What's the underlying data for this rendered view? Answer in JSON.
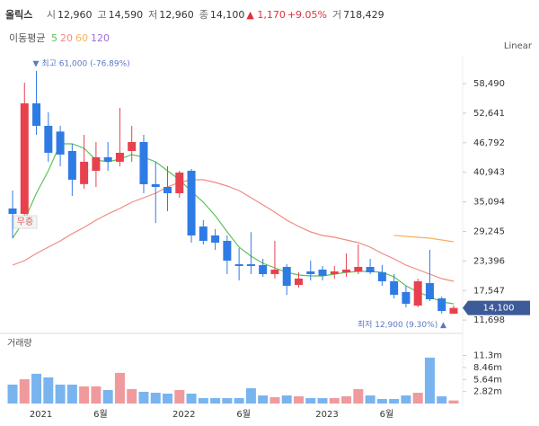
{
  "chart_data": {
    "type": "candlestick",
    "title": "올릭스",
    "quote": [
      {
        "label": "시",
        "value": "12,960"
      },
      {
        "label": "고",
        "value": "14,590"
      },
      {
        "label": "저",
        "value": "12,960"
      },
      {
        "label": "종",
        "value": "14,100"
      }
    ],
    "change": "▲ 1,170",
    "change_pct": "+9.05%",
    "volume_quote": {
      "label": "거",
      "value": "718,429"
    },
    "ma_label": "이동평균",
    "scale_label": "Linear",
    "categories": [
      null,
      null,
      "2021",
      null,
      null,
      null,
      null,
      "6월",
      null,
      null,
      null,
      null,
      null,
      null,
      "2022",
      null,
      null,
      null,
      null,
      "6월",
      null,
      null,
      null,
      null,
      null,
      null,
      "2023",
      null,
      null,
      null,
      null,
      "6월",
      null,
      null,
      null,
      null,
      null,
      null
    ],
    "open": [
      33776,
      32709,
      54578,
      50134,
      49000,
      45160,
      38600,
      41240,
      43910,
      43020,
      45160,
      46930,
      38580,
      38040,
      36800,
      41240,
      30220,
      28440,
      27380,
      22750,
      22750,
      22580,
      20800,
      22220,
      18660,
      21330,
      21690,
      20800,
      21150,
      21330,
      22220,
      21150,
      19380,
      17240,
      14570,
      19020,
      16000,
      12960
    ],
    "high": [
      37334,
      58668,
      61000,
      52800,
      50134,
      46580,
      48356,
      46930,
      46930,
      53690,
      50130,
      48360,
      43020,
      42130,
      41240,
      41600,
      31470,
      29690,
      28440,
      25950,
      29100,
      23820,
      27380,
      22750,
      21150,
      23460,
      22400,
      22400,
      24890,
      26670,
      23820,
      22580,
      20800,
      18490,
      19910,
      25600,
      16350,
      14590
    ],
    "low": [
      27909,
      31000,
      48356,
      43000,
      42130,
      36270,
      37690,
      38040,
      41240,
      42130,
      43020,
      36800,
      30930,
      33250,
      35910,
      27020,
      26670,
      25600,
      20800,
      19550,
      20800,
      20270,
      19910,
      16710,
      18130,
      19550,
      19550,
      19910,
      20270,
      20800,
      20800,
      18490,
      16000,
      14220,
      14220,
      15460,
      13000,
      12900
    ],
    "close": [
      32709,
      54578,
      50134,
      44800,
      44450,
      39470,
      43020,
      43910,
      43020,
      44800,
      46930,
      38580,
      38040,
      36800,
      40890,
      28440,
      27380,
      27020,
      23460,
      22400,
      22400,
      20800,
      21690,
      18490,
      19910,
      20800,
      20450,
      21330,
      21690,
      22220,
      21150,
      19380,
      16710,
      14930,
      19380,
      15820,
      13500,
      14100
    ],
    "up_color": "#e8414e",
    "down_color": "#2f7be5",
    "series": [
      {
        "name": "5",
        "color": "#5cc15a",
        "values": [
          27908,
          31464,
          36798,
          41243,
          46577,
          46577,
          45688,
          43377,
          43021,
          43555,
          44444,
          43910,
          43021,
          41243,
          39465,
          37154,
          35020,
          32353,
          29153,
          26130,
          24352,
          22930,
          22041,
          21152,
          20619,
          20441,
          20441,
          20796,
          21152,
          21330,
          21330,
          21152,
          20263,
          18485,
          17240,
          16351,
          15285,
          14929
        ]
      },
      {
        "name": "20",
        "color": "#f08a80",
        "values": [
          22574,
          23463,
          24886,
          26130,
          27375,
          28797,
          30042,
          31464,
          32709,
          33776,
          35020,
          35909,
          36798,
          38043,
          38932,
          39465,
          39465,
          38932,
          38221,
          37332,
          35909,
          34487,
          33065,
          31464,
          30220,
          29153,
          28442,
          28086,
          27553,
          27019,
          26130,
          24886,
          23819,
          22574,
          21685,
          20796,
          19907,
          19374
        ]
      },
      {
        "name": "60",
        "color": "#f4b260",
        "values": [
          null,
          null,
          null,
          null,
          null,
          null,
          null,
          null,
          null,
          null,
          null,
          null,
          null,
          null,
          null,
          null,
          null,
          null,
          null,
          null,
          null,
          null,
          null,
          null,
          null,
          null,
          null,
          null,
          null,
          null,
          null,
          null,
          28442,
          28264,
          28086,
          27908,
          27553,
          27197
        ]
      },
      {
        "name": "120",
        "color": "#9b6fd6",
        "values": [
          null,
          null,
          null,
          null,
          null,
          null,
          null,
          null,
          null,
          null,
          null,
          null,
          null,
          null,
          null,
          null,
          null,
          null,
          null,
          null,
          null,
          null,
          null,
          null,
          null,
          null,
          null,
          null,
          null,
          null,
          null,
          null,
          null,
          null,
          null,
          null,
          null,
          null
        ]
      }
    ],
    "ylim": [
      9595,
      64002
    ],
    "yticks": [
      {
        "value": 58490,
        "label": "58,490"
      },
      {
        "value": 52641,
        "label": "52,641"
      },
      {
        "value": 46792,
        "label": "46,792"
      },
      {
        "value": 40943,
        "label": "40,943"
      },
      {
        "value": 35094,
        "label": "35,094"
      },
      {
        "value": 29245,
        "label": "29,245"
      },
      {
        "value": 23396,
        "label": "23,396"
      },
      {
        "value": 17547,
        "label": "17,547"
      },
      {
        "value": 11698,
        "label": "11,698"
      }
    ],
    "last_price_label": "14,100",
    "annotations": {
      "high": "▼ 최고 61,000 (-76.89%)",
      "low": "최저 12,900 (9.30%) ▲",
      "event": "무증"
    },
    "volume": {
      "title": "거래량",
      "up_color": "#ef9a9d",
      "down_color": "#79b4ef",
      "values": [
        4.45,
        5.72,
        7.0,
        6.15,
        4.45,
        4.45,
        4.03,
        4.03,
        3.18,
        7.2,
        3.4,
        2.76,
        2.54,
        2.33,
        3.18,
        2.33,
        1.27,
        1.27,
        1.27,
        1.27,
        3.6,
        1.9,
        1.48,
        1.9,
        1.7,
        1.27,
        1.27,
        1.27,
        1.7,
        3.4,
        1.9,
        1.06,
        1.06,
        1.9,
        2.54,
        10.8,
        1.7,
        0.72
      ],
      "ylim": [
        0,
        13.1
      ],
      "yticks": [
        {
          "value": 11.3,
          "label": "11.3m"
        },
        {
          "value": 8.46,
          "label": "8.46m"
        },
        {
          "value": 5.64,
          "label": "5.64m"
        },
        {
          "value": 2.82,
          "label": "2.82m"
        }
      ]
    }
  }
}
